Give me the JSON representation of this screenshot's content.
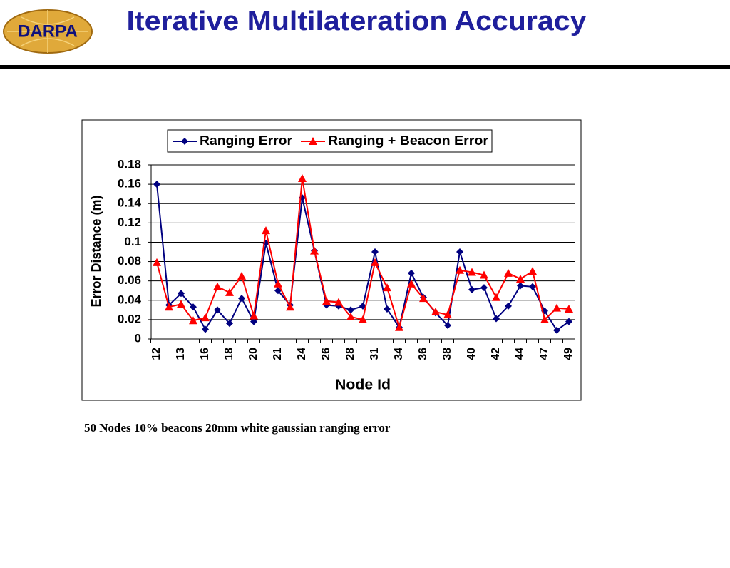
{
  "header": {
    "title": "Iterative Multilateration Accuracy",
    "logo": "DARPA"
  },
  "chart_data": {
    "type": "line",
    "xlabel": "Node Id",
    "ylabel": "Error Distance (m)",
    "categories": [
      "12",
      null,
      "13",
      null,
      "16",
      null,
      "18",
      null,
      "20",
      null,
      "21",
      null,
      "24",
      null,
      "26",
      null,
      "28",
      null,
      "31",
      null,
      "34",
      null,
      "36",
      null,
      "38",
      null,
      "40",
      null,
      "42",
      null,
      "44",
      null,
      "47",
      null,
      "49"
    ],
    "series": [
      {
        "name": "Ranging Error",
        "color": "#000080",
        "marker": "diamond",
        "values": [
          0.16,
          0.035,
          0.047,
          0.033,
          0.01,
          0.03,
          0.016,
          0.042,
          0.018,
          0.099,
          0.05,
          0.035,
          0.146,
          0.091,
          0.035,
          0.034,
          0.03,
          0.034,
          0.09,
          0.031,
          0.012,
          0.068,
          0.043,
          0.027,
          0.014,
          0.09,
          0.051,
          0.053,
          0.021,
          0.034,
          0.055,
          0.054,
          0.029,
          0.009,
          0.018
        ]
      },
      {
        "name": "Ranging + Beacon Error",
        "color": "#ff0000",
        "marker": "triangle",
        "values": [
          0.079,
          0.033,
          0.036,
          0.019,
          0.022,
          0.054,
          0.048,
          0.065,
          0.024,
          0.112,
          0.057,
          0.033,
          0.166,
          0.091,
          0.039,
          0.038,
          0.023,
          0.02,
          0.079,
          0.053,
          0.012,
          0.057,
          0.042,
          0.028,
          0.025,
          0.071,
          0.069,
          0.066,
          0.043,
          0.068,
          0.062,
          0.07,
          0.02,
          0.032,
          0.031
        ]
      }
    ],
    "ylim": [
      0,
      0.18
    ],
    "yticks": [
      0,
      0.02,
      0.04,
      0.06,
      0.08,
      0.1,
      0.12,
      0.14,
      0.16,
      0.18
    ],
    "grid": true,
    "legend": "top"
  },
  "caption": "50 Nodes 10% beacons  20mm white gaussian ranging error"
}
